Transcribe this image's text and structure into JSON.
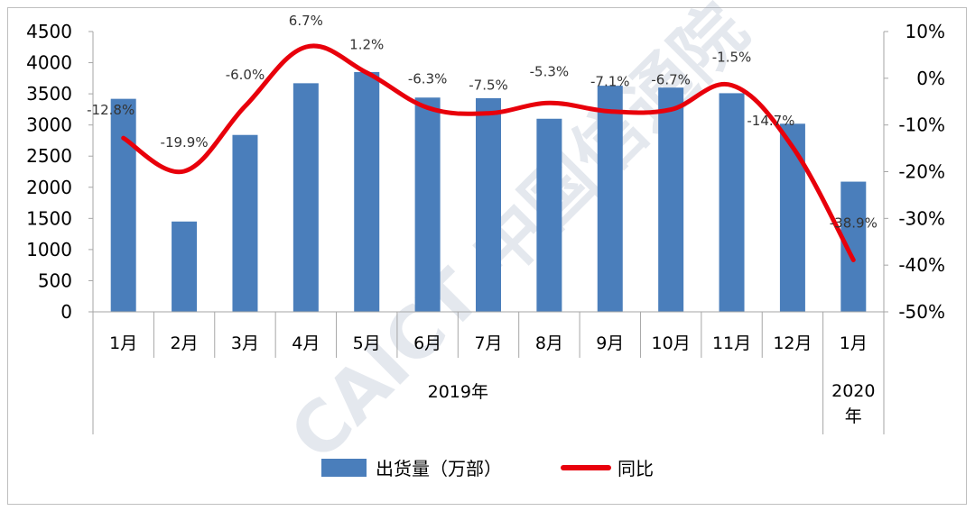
{
  "chart_data": {
    "type": "bar",
    "categories": [
      "1月",
      "2月",
      "3月",
      "4月",
      "5月",
      "6月",
      "7月",
      "8月",
      "9月",
      "10月",
      "11月",
      "12月",
      "1月"
    ],
    "groups": [
      {
        "label": "2019年",
        "span": [
          0,
          11
        ]
      },
      {
        "label": "2020\n年",
        "span": [
          12,
          12
        ]
      }
    ],
    "series": [
      {
        "name": "出货量（万部）",
        "kind": "bar",
        "axis": "left",
        "color": "#4a7ebb",
        "values": [
          3420,
          1450,
          2840,
          3670,
          3850,
          3440,
          3430,
          3100,
          3630,
          3600,
          3510,
          3020,
          2090
        ]
      },
      {
        "name": "同比",
        "kind": "line",
        "axis": "right",
        "color": "#e8000b",
        "values": [
          -12.8,
          -19.9,
          -6.0,
          6.7,
          1.2,
          -6.3,
          -7.5,
          -5.3,
          -7.1,
          -6.7,
          -1.5,
          -14.7,
          -38.9
        ],
        "labels": [
          "-12.8%",
          "-19.9%",
          "-6.0%",
          "6.7%",
          "1.2%",
          "-6.3%",
          "-7.5%",
          "-5.3%",
          "-7.1%",
          "-6.7%",
          "-1.5%",
          "-14.7%",
          "-38.9%"
        ]
      }
    ],
    "yleft": {
      "range": [
        0,
        4500
      ],
      "ticks": [
        "0",
        "500",
        "1000",
        "1500",
        "2000",
        "2500",
        "3000",
        "3500",
        "4000",
        "4500"
      ]
    },
    "yright": {
      "range": [
        -50,
        10
      ],
      "ticks": [
        "10%",
        "0%",
        "-10%",
        "-20%",
        "-30%",
        "-40%",
        "-50%"
      ]
    },
    "legend": {
      "position": "bottom"
    },
    "grid": false
  },
  "watermark": "CAICT 中国信通院"
}
